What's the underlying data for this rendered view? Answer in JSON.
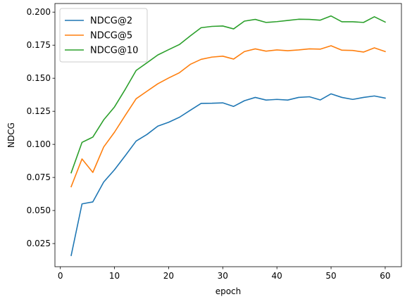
{
  "chart_data": {
    "type": "line",
    "title": "",
    "xlabel": "epoch",
    "ylabel": "NDCG",
    "xlim": [
      -1,
      63
    ],
    "ylim": [
      0.0075,
      0.2065
    ],
    "xticks": [
      0,
      10,
      20,
      30,
      40,
      50,
      60
    ],
    "yticks": [
      0.025,
      0.05,
      0.075,
      0.1,
      0.125,
      0.15,
      0.175,
      0.2
    ],
    "ytick_labels": [
      "0.025",
      "0.050",
      "0.075",
      "0.100",
      "0.125",
      "0.150",
      "0.175",
      "0.200"
    ],
    "grid": false,
    "legend": "top-left",
    "x": [
      2,
      4,
      6,
      8,
      10,
      12,
      14,
      16,
      18,
      20,
      22,
      24,
      26,
      28,
      30,
      32,
      34,
      36,
      38,
      40,
      42,
      44,
      46,
      48,
      50,
      52,
      54,
      56,
      58,
      60
    ],
    "series": [
      {
        "name": "NDCG@2",
        "color": "#1f77b4",
        "values": [
          0.016,
          0.055,
          0.0565,
          0.0715,
          0.0808,
          0.0915,
          0.1025,
          0.1075,
          0.1138,
          0.1167,
          0.1205,
          0.1258,
          0.131,
          0.1311,
          0.1314,
          0.1287,
          0.133,
          0.1355,
          0.1335,
          0.134,
          0.1335,
          0.1355,
          0.136,
          0.1336,
          0.1382,
          0.1355,
          0.134,
          0.1355,
          0.1366,
          0.135
        ]
      },
      {
        "name": "NDCG@5",
        "color": "#ff7f0e",
        "values": [
          0.068,
          0.089,
          0.0788,
          0.098,
          0.1092,
          0.122,
          0.1345,
          0.1402,
          0.1458,
          0.1502,
          0.1542,
          0.1605,
          0.1643,
          0.166,
          0.1667,
          0.1645,
          0.1702,
          0.1722,
          0.1705,
          0.1714,
          0.1708,
          0.1714,
          0.1722,
          0.172,
          0.1746,
          0.1712,
          0.171,
          0.1698,
          0.173,
          0.1702
        ]
      },
      {
        "name": "NDCG@10",
        "color": "#2ca02c",
        "values": [
          0.0785,
          0.1015,
          0.1055,
          0.1185,
          0.1283,
          0.1417,
          0.1559,
          0.1617,
          0.1676,
          0.1716,
          0.1755,
          0.182,
          0.1882,
          0.1892,
          0.1895,
          0.1873,
          0.1932,
          0.1945,
          0.1922,
          0.1928,
          0.1937,
          0.1946,
          0.1945,
          0.1939,
          0.1971,
          0.1927,
          0.1927,
          0.1922,
          0.1965,
          0.1925
        ]
      }
    ]
  }
}
